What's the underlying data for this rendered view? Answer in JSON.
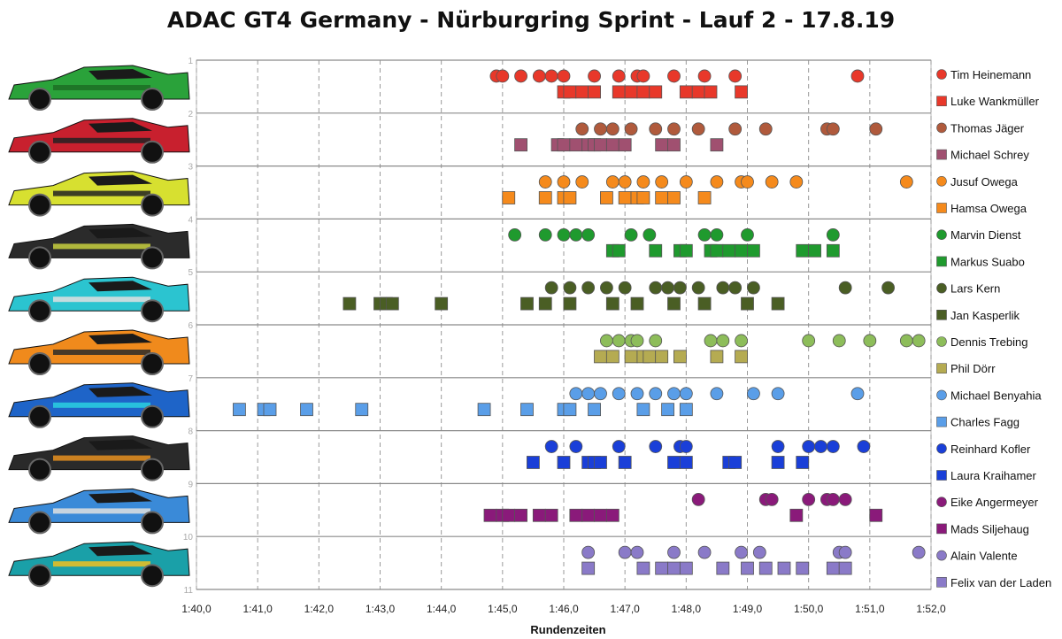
{
  "chart_data": {
    "type": "scatter",
    "title": "ADAC GT4 Germany - Nürburgring Sprint - Lauf 2 - 17.8.19",
    "xlabel": "Rundenzeiten",
    "ylabel": "",
    "xlim": [
      100,
      112
    ],
    "ylim": [
      1,
      11
    ],
    "x_tick_labels": [
      "1:40,0",
      "1:41,0",
      "1:42,0",
      "1:43,0",
      "1:44,0",
      "1:45,0",
      "1:46,0",
      "1:47,0",
      "1:48,0",
      "1:49,0",
      "1:50,0",
      "1:51,0",
      "1:52,0"
    ],
    "y_tick_labels": [
      "1",
      "2",
      "3",
      "4",
      "5",
      "6",
      "7",
      "8",
      "9",
      "10",
      "11"
    ],
    "grid": "vertical dashed, horizontal solid",
    "legend_position": "right",
    "series": [
      {
        "name": "Tim Heinemann",
        "marker": "circle",
        "color": "#e8382a",
        "y": 1.3,
        "x": [
          104.9,
          105.0,
          105.3,
          105.6,
          105.8,
          106.0,
          106.5,
          106.9,
          107.2,
          107.3,
          107.8,
          108.3,
          108.8,
          110.8
        ]
      },
      {
        "name": "Luke Wankmüller",
        "marker": "square",
        "color": "#e8382a",
        "y": 1.6,
        "x": [
          106.0,
          106.1,
          106.3,
          106.5,
          106.9,
          107.1,
          107.3,
          107.5,
          108.0,
          108.2,
          108.4,
          108.9
        ]
      },
      {
        "name": "Thomas Jäger",
        "marker": "circle",
        "color": "#b05a3c",
        "y": 2.3,
        "x": [
          106.3,
          106.6,
          106.8,
          107.1,
          107.5,
          107.8,
          108.2,
          108.8,
          109.3,
          110.3,
          110.4,
          111.1
        ]
      },
      {
        "name": "Michael Schrey",
        "marker": "square",
        "color": "#a05070",
        "y": 2.6,
        "x": [
          105.3,
          105.9,
          106.0,
          106.2,
          106.4,
          106.5,
          106.6,
          106.8,
          107.0,
          107.6,
          107.8,
          108.5
        ]
      },
      {
        "name": "Jusuf Owega",
        "marker": "circle",
        "color": "#f58a1c",
        "y": 3.3,
        "x": [
          105.7,
          106.0,
          106.3,
          106.8,
          107.0,
          107.3,
          107.6,
          108.0,
          108.5,
          108.9,
          109.0,
          109.4,
          109.8,
          111.6
        ]
      },
      {
        "name": "Hamsa Owega",
        "marker": "square",
        "color": "#f58a1c",
        "y": 3.6,
        "x": [
          105.1,
          105.7,
          106.0,
          106.1,
          106.7,
          107.0,
          107.2,
          107.3,
          107.6,
          107.8,
          108.3
        ]
      },
      {
        "name": "Marvin Dienst",
        "marker": "circle",
        "color": "#1f9a2e",
        "y": 4.3,
        "x": [
          105.2,
          105.7,
          106.0,
          106.2,
          106.4,
          107.1,
          107.4,
          108.3,
          108.5,
          109.0,
          110.4
        ]
      },
      {
        "name": "Markus Suabo",
        "marker": "square",
        "color": "#1f9a2e",
        "y": 4.6,
        "x": [
          106.8,
          106.9,
          107.5,
          107.9,
          108.0,
          108.4,
          108.5,
          108.7,
          108.9,
          109.1,
          109.9,
          110.1,
          110.4
        ]
      },
      {
        "name": "Lars Kern",
        "marker": "circle",
        "color": "#4a5e24",
        "y": 5.3,
        "x": [
          105.8,
          106.1,
          106.4,
          106.7,
          107.0,
          107.5,
          107.7,
          107.9,
          108.2,
          108.6,
          108.8,
          109.1,
          110.6,
          111.3
        ]
      },
      {
        "name": "Jan Kasperlik",
        "marker": "square",
        "color": "#4a5e24",
        "y": 5.6,
        "x": [
          102.5,
          103.0,
          103.1,
          103.2,
          104.0,
          105.4,
          105.7,
          106.1,
          106.8,
          107.2,
          107.8,
          108.3,
          109.0,
          109.5
        ]
      },
      {
        "name": "Dennis Trebing",
        "marker": "circle",
        "color": "#8dbd5a",
        "y": 6.3,
        "x": [
          106.7,
          106.9,
          107.1,
          107.2,
          107.5,
          108.4,
          108.6,
          108.9,
          110.0,
          110.5,
          111.0,
          111.6,
          111.8
        ]
      },
      {
        "name": "Phil Dörr",
        "marker": "square",
        "color": "#b5ab52",
        "y": 6.6,
        "x": [
          106.6,
          106.8,
          107.1,
          107.3,
          107.4,
          107.6,
          107.9,
          108.5,
          108.9
        ]
      },
      {
        "name": "Michael Benyahia",
        "marker": "circle",
        "color": "#5a9ee8",
        "y": 7.3,
        "x": [
          106.2,
          106.4,
          106.6,
          106.9,
          107.2,
          107.5,
          107.8,
          108.0,
          108.5,
          109.1,
          109.5,
          110.8
        ]
      },
      {
        "name": "Charles Fagg",
        "marker": "square",
        "color": "#5a9ee8",
        "y": 7.6,
        "x": [
          100.7,
          101.1,
          101.2,
          101.8,
          102.7,
          104.7,
          105.4,
          106.0,
          106.1,
          106.5,
          107.3,
          107.7,
          108.0
        ]
      },
      {
        "name": "Reinhard Kofler",
        "marker": "circle",
        "color": "#1a3fd8",
        "y": 8.3,
        "x": [
          105.8,
          106.2,
          106.9,
          107.5,
          107.9,
          108.0,
          109.5,
          110.0,
          110.2,
          110.4,
          110.9
        ]
      },
      {
        "name": "Laura Kraihamer",
        "marker": "square",
        "color": "#1a3fd8",
        "y": 8.6,
        "x": [
          105.5,
          106.0,
          106.4,
          106.5,
          106.6,
          107.0,
          107.8,
          108.0,
          108.7,
          108.8,
          109.5,
          109.9
        ]
      },
      {
        "name": "Eike Angermeyer",
        "marker": "circle",
        "color": "#8a1a7a",
        "y": 9.3,
        "x": [
          108.2,
          109.3,
          109.4,
          110.0,
          110.3,
          110.4,
          110.6
        ]
      },
      {
        "name": "Mads Siljehaug",
        "marker": "square",
        "color": "#8a1a7a",
        "y": 9.6,
        "x": [
          104.8,
          105.0,
          105.1,
          105.3,
          105.6,
          105.8,
          106.2,
          106.4,
          106.6,
          106.8,
          109.8,
          111.1
        ]
      },
      {
        "name": "Alain Valente",
        "marker": "circle",
        "color": "#8a7ac8",
        "y": 10.3,
        "x": [
          106.4,
          107.0,
          107.2,
          107.8,
          108.3,
          108.9,
          109.2,
          110.5,
          110.6,
          111.8
        ]
      },
      {
        "name": "Felix van der Laden",
        "marker": "square",
        "color": "#8a7ac8",
        "y": 10.6,
        "x": [
          106.4,
          107.3,
          107.6,
          107.8,
          108.0,
          108.6,
          109.0,
          109.3,
          109.6,
          109.9,
          110.4,
          110.6
        ]
      }
    ]
  }
}
